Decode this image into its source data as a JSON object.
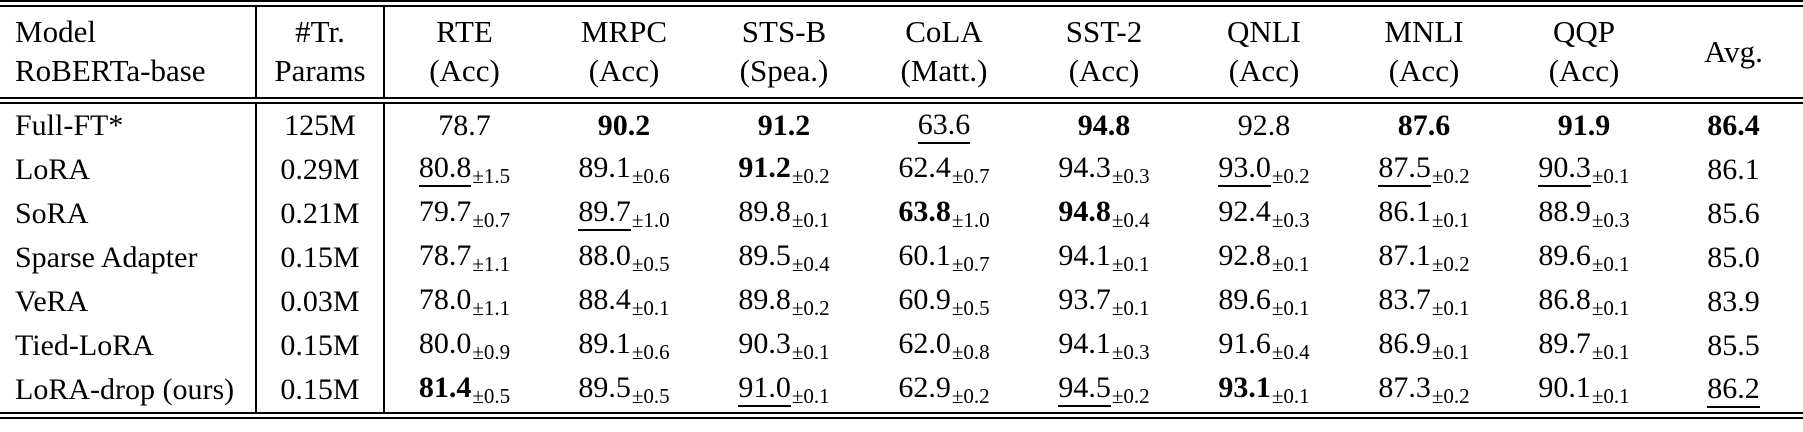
{
  "colors": {
    "text": "#000000",
    "background": "#ffffff",
    "rules": "#000000"
  },
  "table": {
    "header": {
      "model": {
        "line1": "Model",
        "line2": "RoBERTa-base"
      },
      "params": {
        "line1": "#Tr.",
        "line2": "Params"
      },
      "tasks": [
        {
          "name": "RTE",
          "metric": "(Acc)"
        },
        {
          "name": "MRPC",
          "metric": "(Acc)"
        },
        {
          "name": "STS-B",
          "metric": "(Spea.)"
        },
        {
          "name": "CoLA",
          "metric": "(Matt.)"
        },
        {
          "name": "SST-2",
          "metric": "(Acc)"
        },
        {
          "name": "QNLI",
          "metric": "(Acc)"
        },
        {
          "name": "MNLI",
          "metric": "(Acc)"
        },
        {
          "name": "QQP",
          "metric": "(Acc)"
        }
      ],
      "avg": "Avg."
    },
    "rows": [
      {
        "model": "Full-FT*",
        "params": "125M",
        "cells": [
          {
            "value": "78.7",
            "std": "",
            "bold": false,
            "underline": false
          },
          {
            "value": "90.2",
            "std": "",
            "bold": true,
            "underline": false
          },
          {
            "value": "91.2",
            "std": "",
            "bold": true,
            "underline": false
          },
          {
            "value": "63.6",
            "std": "",
            "bold": false,
            "underline": true
          },
          {
            "value": "94.8",
            "std": "",
            "bold": true,
            "underline": false
          },
          {
            "value": "92.8",
            "std": "",
            "bold": false,
            "underline": false
          },
          {
            "value": "87.6",
            "std": "",
            "bold": true,
            "underline": false
          },
          {
            "value": "91.9",
            "std": "",
            "bold": true,
            "underline": false
          }
        ],
        "avg": {
          "value": "86.4",
          "std": "",
          "bold": true,
          "underline": false
        }
      },
      {
        "model": "LoRA",
        "params": "0.29M",
        "cells": [
          {
            "value": "80.8",
            "std": "±1.5",
            "bold": false,
            "underline": true
          },
          {
            "value": "89.1",
            "std": "±0.6",
            "bold": false,
            "underline": false
          },
          {
            "value": "91.2",
            "std": "±0.2",
            "bold": true,
            "underline": false
          },
          {
            "value": "62.4",
            "std": "±0.7",
            "bold": false,
            "underline": false
          },
          {
            "value": "94.3",
            "std": "±0.3",
            "bold": false,
            "underline": false
          },
          {
            "value": "93.0",
            "std": "±0.2",
            "bold": false,
            "underline": true
          },
          {
            "value": "87.5",
            "std": "±0.2",
            "bold": false,
            "underline": true
          },
          {
            "value": "90.3",
            "std": "±0.1",
            "bold": false,
            "underline": true
          }
        ],
        "avg": {
          "value": "86.1",
          "std": "",
          "bold": false,
          "underline": false
        }
      },
      {
        "model": "SoRA",
        "params": "0.21M",
        "cells": [
          {
            "value": "79.7",
            "std": "±0.7",
            "bold": false,
            "underline": false
          },
          {
            "value": "89.7",
            "std": "±1.0",
            "bold": false,
            "underline": true
          },
          {
            "value": "89.8",
            "std": "±0.1",
            "bold": false,
            "underline": false
          },
          {
            "value": "63.8",
            "std": "±1.0",
            "bold": true,
            "underline": false
          },
          {
            "value": "94.8",
            "std": "±0.4",
            "bold": true,
            "underline": false
          },
          {
            "value": "92.4",
            "std": "±0.3",
            "bold": false,
            "underline": false
          },
          {
            "value": "86.1",
            "std": "±0.1",
            "bold": false,
            "underline": false
          },
          {
            "value": "88.9",
            "std": "±0.3",
            "bold": false,
            "underline": false
          }
        ],
        "avg": {
          "value": "85.6",
          "std": "",
          "bold": false,
          "underline": false
        }
      },
      {
        "model": "Sparse Adapter",
        "params": "0.15M",
        "cells": [
          {
            "value": "78.7",
            "std": "±1.1",
            "bold": false,
            "underline": false
          },
          {
            "value": "88.0",
            "std": "±0.5",
            "bold": false,
            "underline": false
          },
          {
            "value": "89.5",
            "std": "±0.4",
            "bold": false,
            "underline": false
          },
          {
            "value": "60.1",
            "std": "±0.7",
            "bold": false,
            "underline": false
          },
          {
            "value": "94.1",
            "std": "±0.1",
            "bold": false,
            "underline": false
          },
          {
            "value": "92.8",
            "std": "±0.1",
            "bold": false,
            "underline": false
          },
          {
            "value": "87.1",
            "std": "±0.2",
            "bold": false,
            "underline": false
          },
          {
            "value": "89.6",
            "std": "±0.1",
            "bold": false,
            "underline": false
          }
        ],
        "avg": {
          "value": "85.0",
          "std": "",
          "bold": false,
          "underline": false
        }
      },
      {
        "model": "VeRA",
        "params": "0.03M",
        "cells": [
          {
            "value": "78.0",
            "std": "±1.1",
            "bold": false,
            "underline": false
          },
          {
            "value": "88.4",
            "std": "±0.1",
            "bold": false,
            "underline": false
          },
          {
            "value": "89.8",
            "std": "±0.2",
            "bold": false,
            "underline": false
          },
          {
            "value": "60.9",
            "std": "±0.5",
            "bold": false,
            "underline": false
          },
          {
            "value": "93.7",
            "std": "±0.1",
            "bold": false,
            "underline": false
          },
          {
            "value": "89.6",
            "std": "±0.1",
            "bold": false,
            "underline": false
          },
          {
            "value": "83.7",
            "std": "±0.1",
            "bold": false,
            "underline": false
          },
          {
            "value": "86.8",
            "std": "±0.1",
            "bold": false,
            "underline": false
          }
        ],
        "avg": {
          "value": "83.9",
          "std": "",
          "bold": false,
          "underline": false
        }
      },
      {
        "model": "Tied-LoRA",
        "params": "0.15M",
        "cells": [
          {
            "value": "80.0",
            "std": "±0.9",
            "bold": false,
            "underline": false
          },
          {
            "value": "89.1",
            "std": "±0.6",
            "bold": false,
            "underline": false
          },
          {
            "value": "90.3",
            "std": "±0.1",
            "bold": false,
            "underline": false
          },
          {
            "value": "62.0",
            "std": "±0.8",
            "bold": false,
            "underline": false
          },
          {
            "value": "94.1",
            "std": "±0.3",
            "bold": false,
            "underline": false
          },
          {
            "value": "91.6",
            "std": "±0.4",
            "bold": false,
            "underline": false
          },
          {
            "value": "86.9",
            "std": "±0.1",
            "bold": false,
            "underline": false
          },
          {
            "value": "89.7",
            "std": "±0.1",
            "bold": false,
            "underline": false
          }
        ],
        "avg": {
          "value": "85.5",
          "std": "",
          "bold": false,
          "underline": false
        }
      },
      {
        "model": "LoRA-drop (ours)",
        "params": "0.15M",
        "cells": [
          {
            "value": "81.4",
            "std": "±0.5",
            "bold": true,
            "underline": false
          },
          {
            "value": "89.5",
            "std": "±0.5",
            "bold": false,
            "underline": false
          },
          {
            "value": "91.0",
            "std": "±0.1",
            "bold": false,
            "underline": true
          },
          {
            "value": "62.9",
            "std": "±0.2",
            "bold": false,
            "underline": false
          },
          {
            "value": "94.5",
            "std": "±0.2",
            "bold": false,
            "underline": true
          },
          {
            "value": "93.1",
            "std": "±0.1",
            "bold": true,
            "underline": false
          },
          {
            "value": "87.3",
            "std": "±0.2",
            "bold": false,
            "underline": false
          },
          {
            "value": "90.1",
            "std": "±0.1",
            "bold": false,
            "underline": false
          }
        ],
        "avg": {
          "value": "86.2",
          "std": "",
          "bold": false,
          "underline": true
        }
      }
    ]
  }
}
